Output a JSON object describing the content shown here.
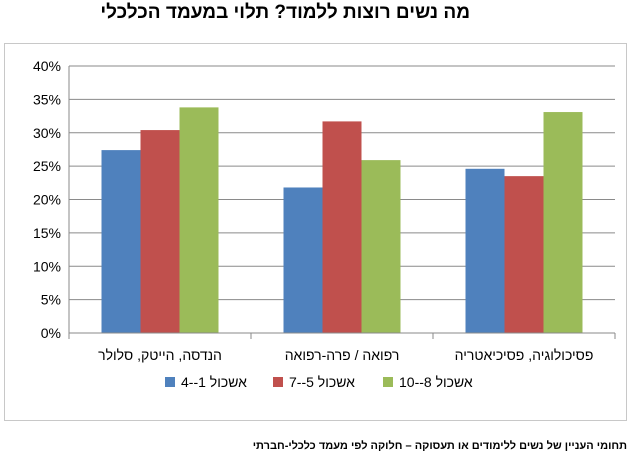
{
  "title": "מה נשים רוצות ללמוד? תלוי במעמד הכלכלי",
  "caption": "תחומי העניין של נשים ללימודים או תעסוקה – חלוקה לפי מעמד כלכלי-חברתי",
  "chart_data": {
    "type": "bar",
    "title": "מה נשים רוצות ללמוד? תלוי במעמד הכלכלי",
    "categories": [
      "הנדסה, הייטק, סלולר",
      "רפואה / פרה-רפואה",
      "פסיכולוגיה, פסיכיאטריה"
    ],
    "series": [
      {
        "name": "אשכול 1--4",
        "color": "#4f81bd",
        "values": [
          27.4,
          21.8,
          24.6
        ]
      },
      {
        "name": "אשכול 5--7",
        "color": "#c0504d",
        "values": [
          30.4,
          31.7,
          23.5
        ]
      },
      {
        "name": "אשכול 8--10",
        "color": "#9bbb59",
        "values": [
          33.8,
          25.9,
          33.1
        ]
      }
    ],
    "ylim": [
      0,
      40
    ],
    "yticks": [
      "0%",
      "5%",
      "10%",
      "15%",
      "20%",
      "25%",
      "30%",
      "35%",
      "40%"
    ],
    "grid": true,
    "legend_position": "bottom"
  }
}
